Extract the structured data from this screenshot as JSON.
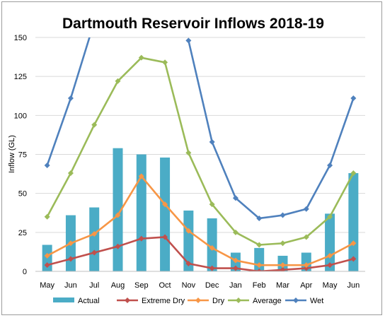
{
  "chart_data": {
    "type": "bar",
    "title": "Dartmouth Reservoir Inflows 2018-19",
    "ylabel": "Inflow (GL)",
    "xlabel": "",
    "ylim": [
      0,
      150
    ],
    "yticks": [
      "0",
      "25",
      "50",
      "75",
      "100",
      "125",
      "150"
    ],
    "grid": true,
    "legend_position": "bottom",
    "categories": [
      "May",
      "Jun",
      "Jul",
      "Aug",
      "Sep",
      "Oct",
      "Nov",
      "Dec",
      "Jan",
      "Feb",
      "Mar",
      "Apr",
      "May",
      "Jun"
    ],
    "series": [
      {
        "name": "Actual",
        "type": "bar",
        "color": "#4bacc6",
        "values": [
          17,
          36,
          41,
          79,
          75,
          73,
          39,
          34,
          12,
          15,
          10,
          12,
          37,
          63
        ]
      },
      {
        "name": "Extreme Dry",
        "type": "line",
        "color": "#c0504d",
        "values": [
          4,
          8,
          12,
          16,
          21,
          22,
          5,
          2,
          2,
          0,
          1,
          2,
          4,
          8
        ]
      },
      {
        "name": "Dry",
        "type": "line",
        "color": "#f79646",
        "values": [
          10,
          18,
          24,
          36,
          61,
          43,
          26,
          15,
          7,
          4,
          4,
          4,
          10,
          18
        ]
      },
      {
        "name": "Average",
        "type": "line",
        "color": "#9bbb59",
        "values": [
          35,
          63,
          94,
          122,
          137,
          134,
          76,
          43,
          25,
          17,
          18,
          22,
          35,
          63
        ]
      },
      {
        "name": "Wet",
        "type": "line",
        "color": "#4f81bd",
        "values": [
          68,
          111,
          160,
          null,
          null,
          null,
          148,
          83,
          47,
          34,
          36,
          40,
          68,
          111
        ]
      }
    ]
  }
}
